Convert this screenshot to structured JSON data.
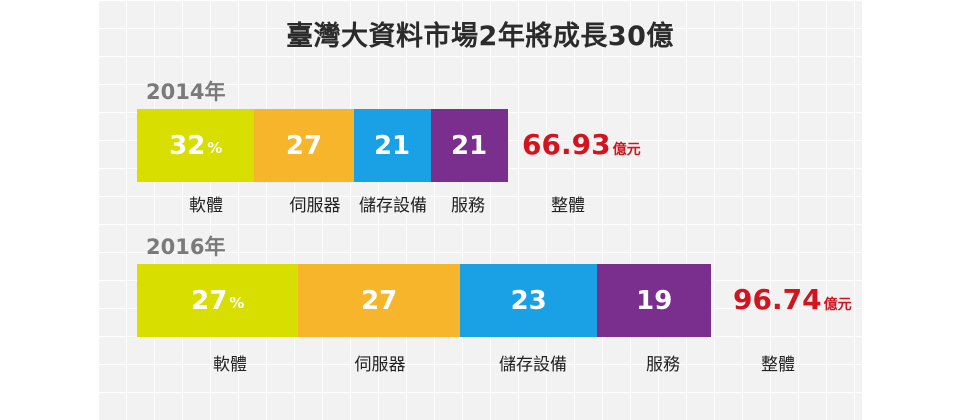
{
  "chart_data": {
    "type": "bar",
    "title": "臺灣大資料市場2年將成長30億",
    "stacked": true,
    "orientation": "horizontal",
    "categories": [
      "軟體",
      "伺服器",
      "儲存設備",
      "服務"
    ],
    "total_label": "整體",
    "unit_label": "億元",
    "percent_sign": "%",
    "colors": [
      "#d7de00",
      "#f7b52c",
      "#1aa0e4",
      "#7a2f8e"
    ],
    "rows": [
      {
        "year": "2014年",
        "values": [
          32,
          27,
          21,
          21
        ],
        "total": "66.93"
      },
      {
        "year": "2016年",
        "values": [
          27,
          27,
          23,
          19
        ],
        "total": "96.74"
      }
    ]
  }
}
